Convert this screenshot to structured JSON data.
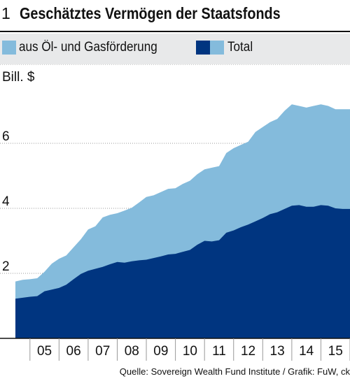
{
  "figure_number": "1",
  "title": "Geschätztes Vermögen der Staatsfonds",
  "legend": {
    "oil_gas_label": "aus Öl- und Gasförderung",
    "total_label": "Total"
  },
  "colors": {
    "oil_gas": "#003580",
    "total": "#84bbdc",
    "grid": "#9a9a9a",
    "legend_band": "#e8e9ea"
  },
  "source": "Quelle: Sovereign Wealth Fund Institute / Grafik: FuW, ck",
  "chart_data": {
    "type": "area",
    "ylabel": "Bill. $",
    "ylim": [
      0,
      8
    ],
    "yticks": [
      2,
      4,
      6
    ],
    "xlim": [
      2004.5,
      2016.0
    ],
    "xtick_labels": [
      "05",
      "06",
      "07",
      "08",
      "09",
      "10",
      "11",
      "12",
      "13",
      "14",
      "15"
    ],
    "xtick_values": [
      2005,
      2006,
      2007,
      2008,
      2009,
      2010,
      2011,
      2012,
      2013,
      2014,
      2015
    ],
    "grid": true,
    "legend_position": "top",
    "x": [
      2004.5,
      2004.75,
      2005.0,
      2005.25,
      2005.5,
      2005.75,
      2006.0,
      2006.25,
      2006.5,
      2006.75,
      2007.0,
      2007.25,
      2007.5,
      2007.75,
      2008.0,
      2008.25,
      2008.5,
      2008.75,
      2009.0,
      2009.25,
      2009.5,
      2009.75,
      2010.0,
      2010.25,
      2010.5,
      2010.75,
      2011.0,
      2011.25,
      2011.5,
      2011.75,
      2012.0,
      2012.25,
      2012.5,
      2012.75,
      2013.0,
      2013.25,
      2013.5,
      2013.75,
      2014.0,
      2014.25,
      2014.5,
      2014.75,
      2015.0,
      2015.25,
      2015.5,
      2015.75,
      2016.0
    ],
    "series": [
      {
        "name": "aus Öl- und Gasförderung",
        "values": [
          1.22,
          1.25,
          1.28,
          1.3,
          1.45,
          1.5,
          1.55,
          1.65,
          1.82,
          1.98,
          2.08,
          2.14,
          2.2,
          2.28,
          2.35,
          2.33,
          2.37,
          2.4,
          2.42,
          2.47,
          2.52,
          2.58,
          2.6,
          2.66,
          2.72,
          2.88,
          3.0,
          2.98,
          3.02,
          3.25,
          3.32,
          3.42,
          3.5,
          3.6,
          3.7,
          3.82,
          3.88,
          3.98,
          4.08,
          4.1,
          4.05,
          4.05,
          4.1,
          4.08,
          4.0,
          3.98,
          3.98
        ]
      },
      {
        "name": "Total",
        "values": [
          1.75,
          1.8,
          1.82,
          1.85,
          2.05,
          2.3,
          2.45,
          2.55,
          2.8,
          3.05,
          3.35,
          3.45,
          3.72,
          3.8,
          3.85,
          3.93,
          4.02,
          4.18,
          4.35,
          4.4,
          4.5,
          4.6,
          4.62,
          4.75,
          4.85,
          5.05,
          5.2,
          5.25,
          5.3,
          5.7,
          5.85,
          5.95,
          6.05,
          6.35,
          6.5,
          6.65,
          6.75,
          7.0,
          7.2,
          7.15,
          7.1,
          7.15,
          7.2,
          7.15,
          7.05,
          7.05,
          7.05
        ]
      }
    ]
  }
}
